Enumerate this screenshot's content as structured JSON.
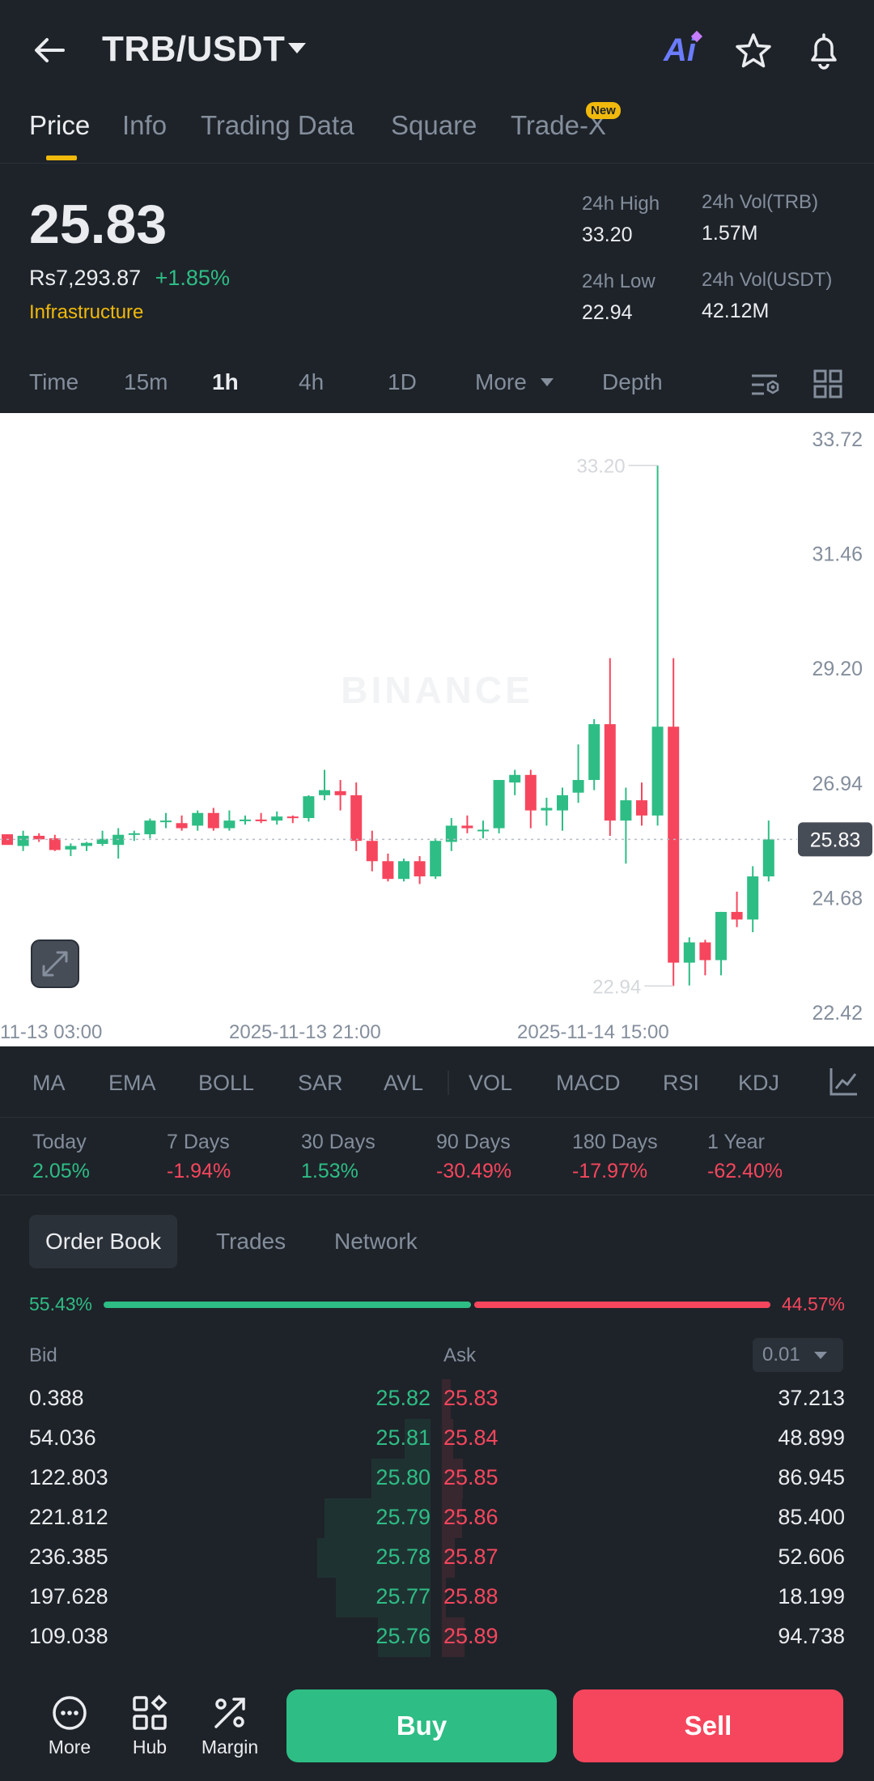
{
  "header": {
    "pair": "TRB/USDT",
    "ai_label": "Ai"
  },
  "tabs": [
    {
      "label": "Price",
      "active": true
    },
    {
      "label": "Info"
    },
    {
      "label": "Trading Data"
    },
    {
      "label": "Square"
    },
    {
      "label": "Trade-X",
      "badge": "New"
    }
  ],
  "summary": {
    "last_price": "25.83",
    "fiat_price": "Rs7,293.87",
    "change_pct": "+1.85%",
    "category": "Infrastructure",
    "high_label": "24h High",
    "high_value": "33.20",
    "low_label": "24h Low",
    "low_value": "22.94",
    "vol_base_label": "24h Vol(TRB)",
    "vol_base_value": "1.57M",
    "vol_quote_label": "24h Vol(USDT)",
    "vol_quote_value": "42.12M"
  },
  "timeframes": [
    {
      "label": "Time"
    },
    {
      "label": "15m"
    },
    {
      "label": "1h",
      "active": true
    },
    {
      "label": "4h"
    },
    {
      "label": "1D"
    },
    {
      "label": "More"
    },
    {
      "label": "Depth"
    }
  ],
  "chart_data": {
    "type": "candlestick",
    "watermark": "BINANCE",
    "y_ticks": [
      "33.72",
      "31.46",
      "29.20",
      "26.94",
      "24.68",
      "22.42"
    ],
    "ylim": [
      22.42,
      33.72
    ],
    "x_ticks": [
      "11-13 03:00",
      "2025-11-13 21:00",
      "2025-11-14 15:00"
    ],
    "last_price_tag": "25.83",
    "high_marker": "33.20",
    "low_marker": "22.94",
    "candles": [
      [
        25.93,
        25.93,
        25.76,
        25.72
      ],
      [
        25.7,
        26.0,
        25.6,
        25.9
      ],
      [
        25.9,
        25.95,
        25.78,
        25.83
      ],
      [
        25.85,
        25.92,
        25.6,
        25.62
      ],
      [
        25.63,
        25.75,
        25.5,
        25.7
      ],
      [
        25.7,
        25.78,
        25.6,
        25.76
      ],
      [
        25.74,
        26.0,
        25.7,
        25.84
      ],
      [
        25.72,
        26.05,
        25.45,
        25.92
      ],
      [
        25.92,
        26.0,
        25.8,
        25.95
      ],
      [
        25.93,
        26.24,
        25.85,
        26.2
      ],
      [
        26.18,
        26.35,
        26.05,
        26.2
      ],
      [
        26.15,
        26.3,
        26.0,
        26.05
      ],
      [
        26.1,
        26.4,
        26.0,
        26.35
      ],
      [
        26.35,
        26.45,
        26.0,
        26.05
      ],
      [
        26.05,
        26.4,
        26.0,
        26.2
      ],
      [
        26.2,
        26.3,
        26.12,
        26.22
      ],
      [
        26.22,
        26.35,
        26.15,
        26.2
      ],
      [
        26.2,
        26.38,
        26.12,
        26.28
      ],
      [
        26.28,
        26.3,
        26.15,
        26.25
      ],
      [
        26.25,
        26.7,
        26.18,
        26.68
      ],
      [
        26.7,
        27.2,
        26.6,
        26.8
      ],
      [
        26.78,
        27.0,
        26.4,
        26.7
      ],
      [
        26.7,
        26.95,
        25.6,
        25.8
      ],
      [
        25.8,
        26.0,
        25.2,
        25.4
      ],
      [
        25.4,
        25.55,
        25.0,
        25.05
      ],
      [
        25.05,
        25.45,
        25.0,
        25.4
      ],
      [
        25.4,
        25.5,
        24.95,
        25.1
      ],
      [
        25.1,
        25.85,
        25.05,
        25.8
      ],
      [
        25.78,
        26.25,
        25.6,
        26.1
      ],
      [
        26.1,
        26.3,
        25.95,
        26.05
      ],
      [
        26.0,
        26.2,
        25.85,
        26.02
      ],
      [
        26.05,
        27.0,
        25.95,
        27.0
      ],
      [
        26.95,
        27.2,
        26.7,
        27.1
      ],
      [
        27.1,
        27.2,
        26.05,
        26.4
      ],
      [
        26.4,
        26.65,
        26.1,
        26.45
      ],
      [
        26.4,
        26.85,
        26.0,
        26.7
      ],
      [
        26.75,
        27.7,
        26.55,
        27.0
      ],
      [
        27.0,
        28.2,
        26.8,
        28.1
      ],
      [
        28.1,
        29.4,
        25.9,
        26.2
      ],
      [
        26.2,
        26.85,
        25.35,
        26.6
      ],
      [
        26.6,
        26.95,
        26.1,
        26.3
      ],
      [
        26.3,
        33.2,
        26.1,
        28.05
      ],
      [
        28.05,
        29.4,
        22.94,
        23.4
      ],
      [
        23.4,
        23.9,
        22.95,
        23.8
      ],
      [
        23.8,
        23.85,
        23.15,
        23.45
      ],
      [
        23.45,
        24.4,
        23.15,
        24.4
      ],
      [
        24.4,
        24.8,
        24.1,
        24.25
      ],
      [
        24.25,
        25.3,
        24.0,
        25.1
      ],
      [
        25.1,
        26.2,
        25.0,
        25.83
      ]
    ]
  },
  "indicators": [
    "MA",
    "EMA",
    "BOLL",
    "SAR",
    "AVL",
    "VOL",
    "MACD",
    "RSI",
    "KDJ"
  ],
  "performance": [
    {
      "label": "Today",
      "value": "2.05%",
      "dir": "up"
    },
    {
      "label": "7 Days",
      "value": "-1.94%",
      "dir": "down"
    },
    {
      "label": "30 Days",
      "value": "1.53%",
      "dir": "up"
    },
    {
      "label": "90 Days",
      "value": "-30.49%",
      "dir": "down"
    },
    {
      "label": "180 Days",
      "value": "-17.97%",
      "dir": "down"
    },
    {
      "label": "1 Year",
      "value": "-62.40%",
      "dir": "down"
    }
  ],
  "orderbook_tabs": [
    {
      "label": "Order Book",
      "active": true
    },
    {
      "label": "Trades"
    },
    {
      "label": "Network"
    }
  ],
  "ratio": {
    "bid": "55.43%",
    "ask": "44.57%",
    "bid_fraction": 0.5543
  },
  "orderbook": {
    "bid_header": "Bid",
    "ask_header": "Ask",
    "precision": "0.01",
    "rows": [
      {
        "bid_qty": "0.388",
        "bid_px": "25.82",
        "ask_px": "25.83",
        "ask_qty": "37.213"
      },
      {
        "bid_qty": "54.036",
        "bid_px": "25.81",
        "ask_px": "25.84",
        "ask_qty": "48.899"
      },
      {
        "bid_qty": "122.803",
        "bid_px": "25.80",
        "ask_px": "25.85",
        "ask_qty": "86.945"
      },
      {
        "bid_qty": "221.812",
        "bid_px": "25.79",
        "ask_px": "25.86",
        "ask_qty": "85.400"
      },
      {
        "bid_qty": "236.385",
        "bid_px": "25.78",
        "ask_px": "25.87",
        "ask_qty": "52.606"
      },
      {
        "bid_qty": "197.628",
        "bid_px": "25.77",
        "ask_px": "25.88",
        "ask_qty": "18.199"
      },
      {
        "bid_qty": "109.038",
        "bid_px": "25.76",
        "ask_px": "25.89",
        "ask_qty": "94.738"
      }
    ]
  },
  "bottom_bar": {
    "more_label": "More",
    "hub_label": "Hub",
    "margin_label": "Margin",
    "buy_label": "Buy",
    "sell_label": "Sell"
  },
  "colors": {
    "up": "#2ebd85",
    "down": "#f6465d",
    "accent": "#f0b90b",
    "bg": "#1e2329"
  }
}
